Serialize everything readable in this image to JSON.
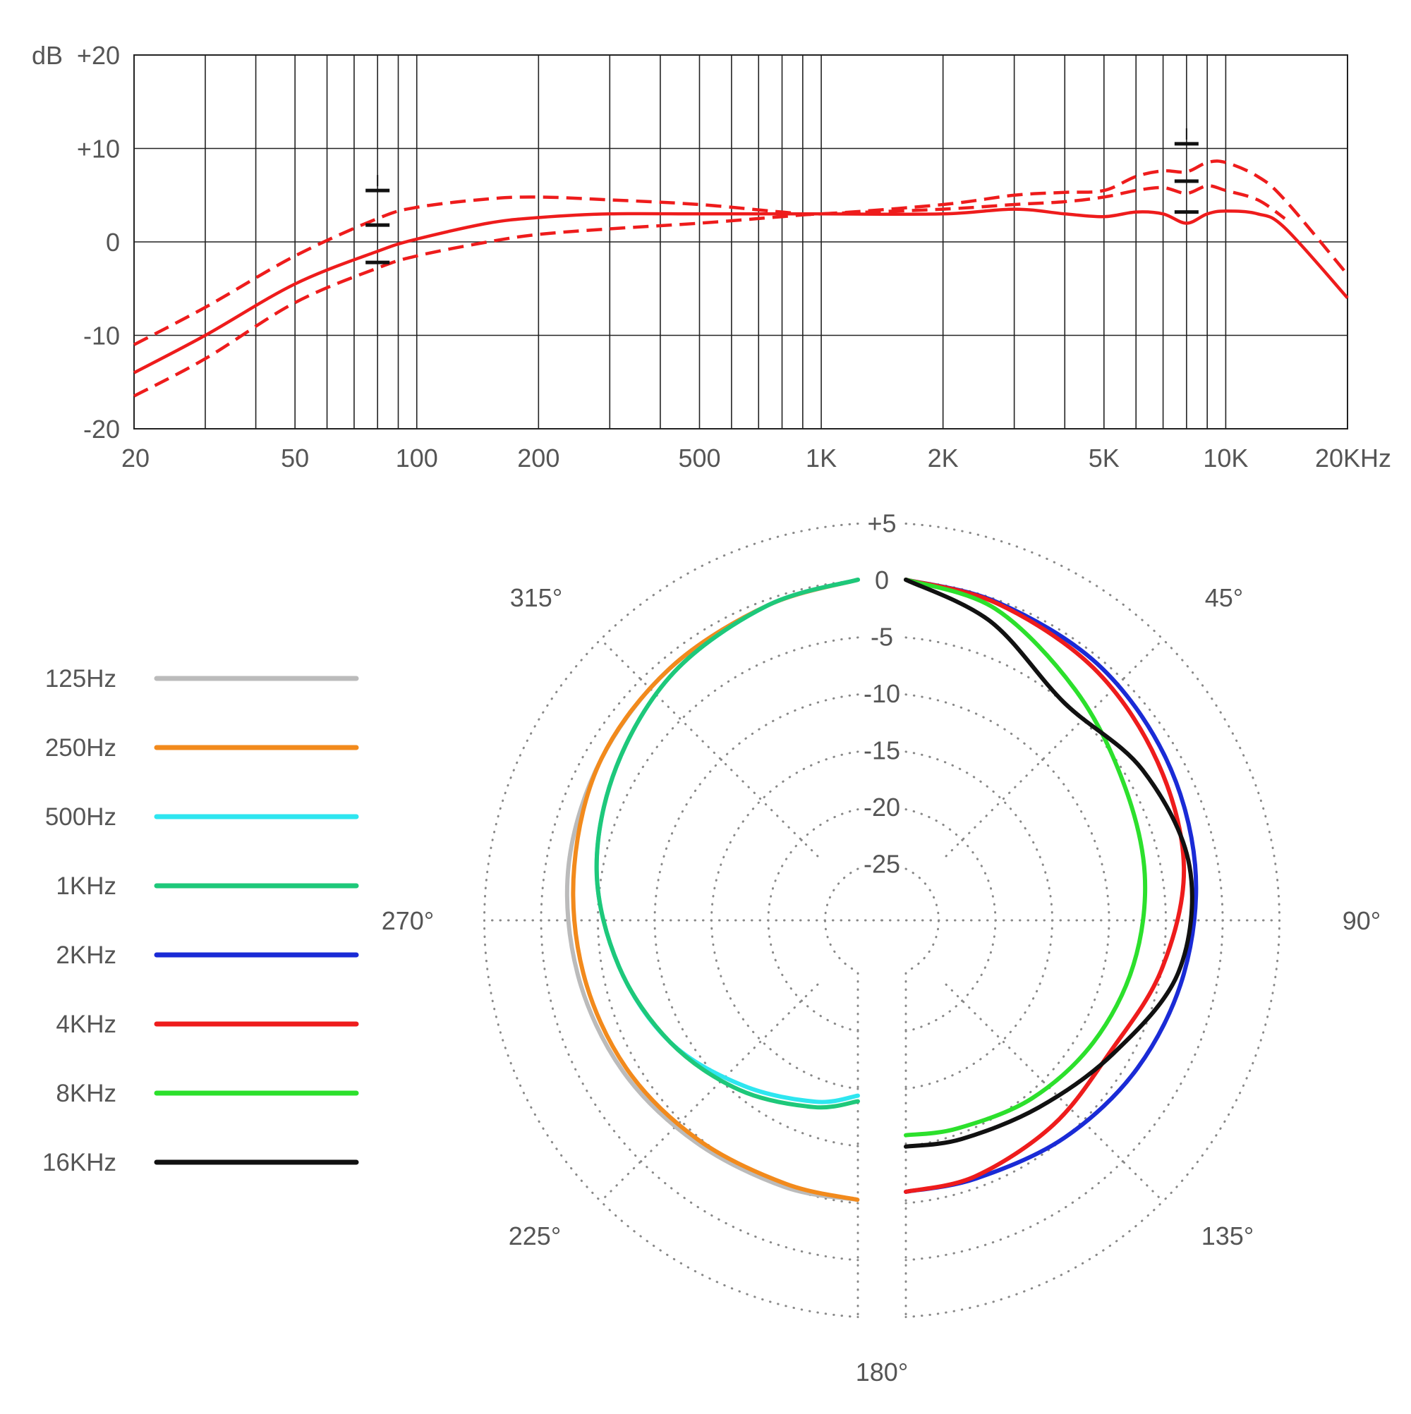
{
  "chart_data": [
    {
      "type": "line",
      "title": "",
      "ylabel": "dB",
      "xlabel": "",
      "x_scale": "log",
      "xlim": [
        20,
        20000
      ],
      "ylim": [
        -20,
        20
      ],
      "grid": true,
      "x_tick_labels": [
        "20",
        "50",
        "100",
        "200",
        "500",
        "1K",
        "2K",
        "5K",
        "10K",
        "20KHz"
      ],
      "x_tick_values": [
        20,
        50,
        100,
        200,
        500,
        1000,
        2000,
        5000,
        10000,
        20000
      ],
      "y_tick_labels": [
        "+20",
        "+10",
        "0",
        "-10",
        "-20"
      ],
      "y_tick_values": [
        20,
        10,
        0,
        -10,
        -20
      ],
      "series": [
        {
          "style": "solid",
          "color": "#ee1c1c",
          "x": [
            20,
            30,
            50,
            80,
            100,
            150,
            200,
            300,
            500,
            800,
            1000,
            2000,
            3000,
            4000,
            5000,
            6000,
            7000,
            8000,
            9000,
            10000,
            12000,
            14000,
            20000
          ],
          "y": [
            -14,
            -10,
            -4.5,
            -1,
            0.3,
            2,
            2.6,
            3,
            3,
            3,
            3,
            3,
            3.5,
            3,
            2.7,
            3.2,
            3,
            2,
            3,
            3.3,
            3,
            1.5,
            -6
          ]
        },
        {
          "style": "dashed",
          "color": "#ee1c1c",
          "x": [
            20,
            30,
            50,
            80,
            100,
            150,
            200,
            300,
            500,
            800,
            1000,
            2000,
            3000,
            4000,
            5000,
            6000,
            7000,
            8000,
            9000,
            10000,
            12000,
            14000,
            20000
          ],
          "y": [
            -11,
            -7,
            -1.5,
            2.5,
            3.7,
            4.6,
            4.8,
            4.5,
            4,
            3.2,
            3,
            4,
            5,
            5.3,
            5.5,
            7,
            7.6,
            7.5,
            8.5,
            8.5,
            7,
            4.5,
            -3.5
          ]
        },
        {
          "style": "dashed",
          "color": "#ee1c1c",
          "x": [
            20,
            30,
            50,
            80,
            100,
            150,
            200,
            300,
            500,
            800,
            1000,
            2000,
            3000,
            4000,
            5000,
            6000,
            7000,
            8000,
            9000,
            10000,
            12000,
            14000
          ],
          "y": [
            -16.5,
            -12.5,
            -6.5,
            -2.8,
            -1.5,
            0,
            0.8,
            1.4,
            2,
            2.7,
            3,
            3.5,
            4,
            4.3,
            4.8,
            5.5,
            5.8,
            5.2,
            6,
            5.5,
            4.5,
            2.5
          ]
        }
      ],
      "tolerance_marks": [
        {
          "x": 80,
          "y": [
            5.5,
            1.8,
            -2.2
          ]
        },
        {
          "x": 8000,
          "y": [
            10.5,
            6.5,
            3.2
          ]
        }
      ]
    },
    {
      "type": "polar",
      "title": "",
      "radial_range": [
        -30,
        5
      ],
      "radial_tick_labels": [
        "+5",
        "0",
        "-5",
        "-10",
        "-15",
        "-20",
        "-25"
      ],
      "radial_tick_values": [
        5,
        0,
        -5,
        -10,
        -15,
        -20,
        -25
      ],
      "angle_tick_labels": [
        "45°",
        "90°",
        "135°",
        "180°",
        "225°",
        "270°",
        "315°"
      ],
      "angle_tick_values": [
        45,
        90,
        135,
        180,
        225,
        270,
        315
      ],
      "legend_position": "left",
      "series": [
        {
          "name": "125Hz",
          "color": "#bbbbbb",
          "side": "left",
          "angle": [
            0,
            20,
            40,
            60,
            80,
            100,
            120,
            140,
            160,
            175
          ],
          "level": [
            0,
            -0.5,
            -1,
            -1.5,
            -2,
            -2.8,
            -3.6,
            -4.5,
            -5,
            -5.3
          ]
        },
        {
          "name": "250Hz",
          "color": "#f28a1c",
          "side": "left",
          "angle": [
            0,
            20,
            40,
            60,
            80,
            100,
            120,
            140,
            160,
            175
          ],
          "level": [
            0,
            -0.5,
            -1,
            -1.5,
            -2.5,
            -3.3,
            -4,
            -4.8,
            -5.3,
            -5.3
          ]
        },
        {
          "name": "500Hz",
          "color": "#2ee6f0",
          "side": "left",
          "angle": [
            0,
            20,
            40,
            60,
            80,
            100,
            120,
            140,
            160,
            175
          ],
          "level": [
            0,
            -0.5,
            -1.5,
            -3,
            -4.5,
            -6.5,
            -8.5,
            -11,
            -13,
            -14.5
          ]
        },
        {
          "name": "1KHz",
          "color": "#1ec87a",
          "side": "left",
          "angle": [
            0,
            20,
            40,
            60,
            80,
            100,
            120,
            140,
            160,
            175
          ],
          "level": [
            0,
            -0.5,
            -1.5,
            -3,
            -4.5,
            -6.5,
            -8.5,
            -10.5,
            -12.5,
            -14
          ]
        },
        {
          "name": "2KHz",
          "color": "#1a2bd6",
          "side": "right",
          "angle": [
            0,
            20,
            40,
            60,
            80,
            100,
            120,
            140,
            160,
            175
          ],
          "level": [
            0,
            -0.2,
            -0.5,
            -1.2,
            -2,
            -3,
            -4,
            -5,
            -5.8,
            -6
          ]
        },
        {
          "name": "4KHz",
          "color": "#ee1c1c",
          "side": "right",
          "angle": [
            0,
            20,
            40,
            60,
            80,
            100,
            120,
            140,
            160,
            175
          ],
          "level": [
            0,
            -0.3,
            -1,
            -2,
            -3,
            -5,
            -6.8,
            -6.5,
            -6,
            -6
          ]
        },
        {
          "name": "8KHz",
          "color": "#2ce02c",
          "side": "right",
          "angle": [
            0,
            20,
            40,
            60,
            80,
            100,
            120,
            140,
            160,
            175
          ],
          "level": [
            0,
            -0.8,
            -3.5,
            -5.5,
            -6.5,
            -7.5,
            -8.5,
            -9.5,
            -10.5,
            -11
          ]
        },
        {
          "name": "16KHz",
          "color": "#111111",
          "side": "right",
          "angle": [
            0,
            20,
            40,
            60,
            80,
            100,
            120,
            140,
            160,
            175
          ],
          "level": [
            0,
            -2,
            -5,
            -3.5,
            -2.5,
            -3.5,
            -6.5,
            -8.5,
            -9.5,
            -10
          ]
        }
      ]
    }
  ]
}
